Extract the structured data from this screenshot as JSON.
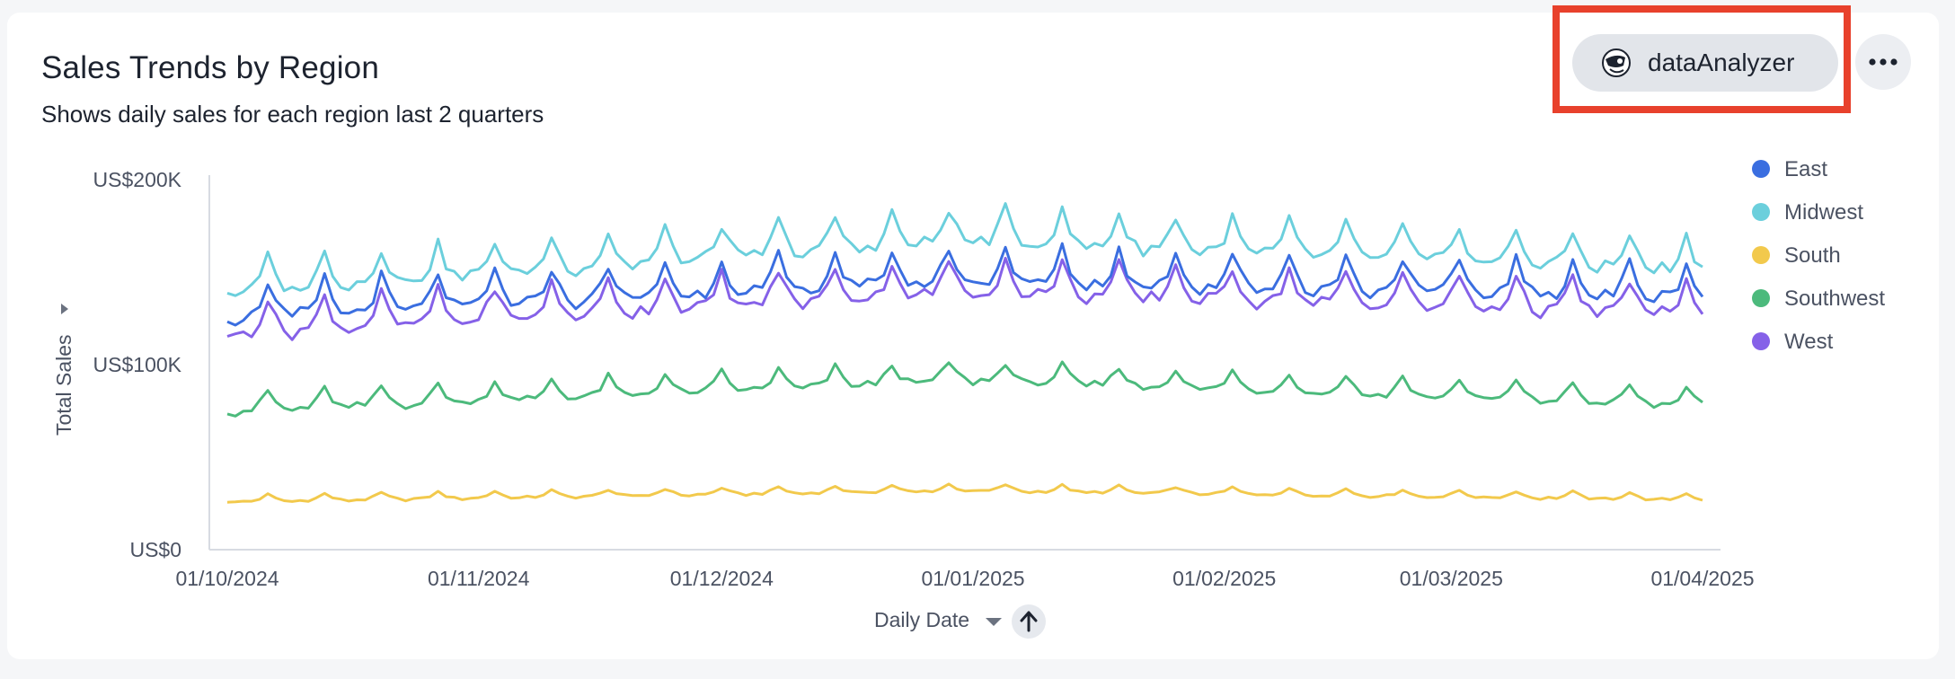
{
  "header": {
    "title": "Sales Trends by Region",
    "subtitle": "Shows daily sales for each region last 2 quarters"
  },
  "user": {
    "name": "dataAnalyzer"
  },
  "menu": {
    "icon": "more-horizontal-icon"
  },
  "colors": {
    "East": "#3a6ee0",
    "Midwest": "#6bcfdc",
    "South": "#f2c94c",
    "Southwest": "#4cba7c",
    "West": "#8561e8",
    "highlight": "#e8412c"
  },
  "chart_data": {
    "type": "line",
    "title": "Sales Trends by Region",
    "subtitle": "Shows daily sales for each region last 2 quarters",
    "xlabel": "Daily Date",
    "ylabel": "Total Sales",
    "x_range": [
      "2024-10-01",
      "2025-04-01"
    ],
    "ylim": [
      0,
      200000
    ],
    "yticks": [
      {
        "value": 0,
        "label": "US$0"
      },
      {
        "value": 100000,
        "label": "US$100K"
      },
      {
        "value": 200000,
        "label": "US$200K"
      }
    ],
    "xticks": [
      {
        "day": 0,
        "label": "01/10/2024"
      },
      {
        "day": 31,
        "label": "01/11/2024"
      },
      {
        "day": 61,
        "label": "01/12/2024"
      },
      {
        "day": 92,
        "label": "01/01/2025"
      },
      {
        "day": 123,
        "label": "01/02/2025"
      },
      {
        "day": 151,
        "label": "01/03/2025"
      },
      {
        "day": 182,
        "label": "01/04/2025"
      }
    ],
    "grid": false,
    "legend_position": "right",
    "series": [
      {
        "name": "East",
        "level_start": 126000,
        "level_mid": 146000,
        "level_end": 137000,
        "weekly_peak": 18000
      },
      {
        "name": "Midwest",
        "level_start": 140000,
        "level_mid": 168000,
        "level_end": 152000,
        "weekly_peak": 17000
      },
      {
        "name": "South",
        "level_start": 26000,
        "level_mid": 32000,
        "level_end": 27000,
        "weekly_peak": 3500
      },
      {
        "name": "Southwest",
        "level_start": 75000,
        "level_mid": 92000,
        "level_end": 78000,
        "weekly_peak": 10000
      },
      {
        "name": "West",
        "level_start": 117000,
        "level_mid": 140000,
        "level_end": 128000,
        "weekly_peak": 17000
      }
    ],
    "sort_direction": "ascending"
  }
}
